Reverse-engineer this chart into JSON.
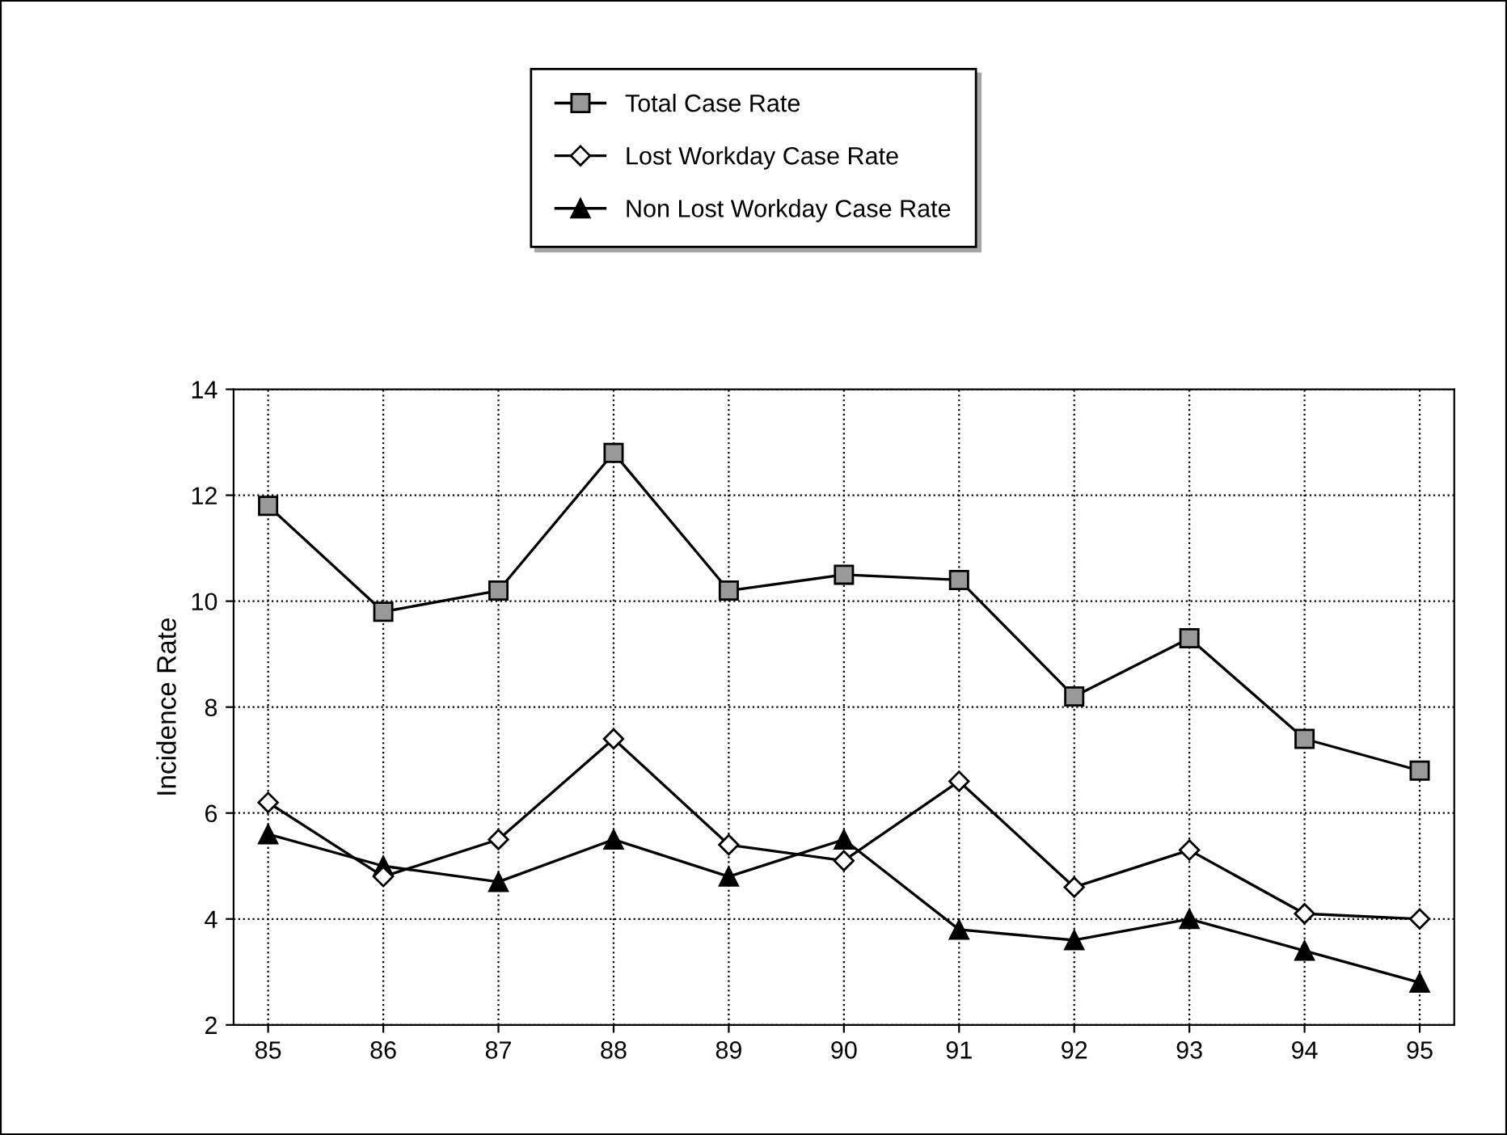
{
  "chart_data": {
    "type": "line",
    "ylabel": "Incidence Rate",
    "categories": [
      "85",
      "86",
      "87",
      "88",
      "89",
      "90",
      "91",
      "92",
      "93",
      "94",
      "95"
    ],
    "series": [
      {
        "name": "Total Case Rate",
        "color": "#000000",
        "marker": "square",
        "values": [
          11.8,
          9.8,
          10.2,
          12.8,
          10.2,
          10.5,
          10.4,
          8.2,
          9.3,
          7.4,
          6.8
        ]
      },
      {
        "name": "Lost Workday Case Rate",
        "color": "#000000",
        "marker": "diamond",
        "values": [
          6.2,
          4.8,
          5.5,
          7.4,
          5.4,
          5.1,
          6.6,
          4.6,
          5.3,
          4.1,
          4.0
        ]
      },
      {
        "name": "Non Lost Workday Case Rate",
        "color": "#000000",
        "marker": "triangle",
        "values": [
          5.6,
          5.0,
          4.7,
          5.5,
          4.8,
          5.5,
          3.8,
          3.6,
          4.0,
          3.4,
          2.8
        ]
      }
    ],
    "ylim": [
      2,
      14
    ],
    "yticks": [
      2,
      4,
      6,
      8,
      10,
      12,
      14
    ],
    "grid": true,
    "legend": "top",
    "line_style": "solid"
  }
}
